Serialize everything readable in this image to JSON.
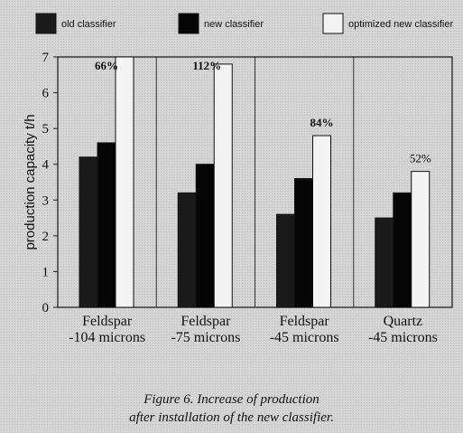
{
  "chart_data": {
    "type": "bar",
    "categories": [
      [
        "Feldspar",
        "-104 microns"
      ],
      [
        "Feldspar",
        "-75 microns"
      ],
      [
        "Feldspar",
        "-45 microns"
      ],
      [
        "Quartz",
        "-45 microns"
      ]
    ],
    "series": [
      {
        "name": "old classifier",
        "values": [
          4.2,
          3.2,
          2.6,
          2.5
        ],
        "color": "#1a1a1a"
      },
      {
        "name": "new classifier",
        "values": [
          4.6,
          4.0,
          3.6,
          3.2
        ],
        "color": "#050505"
      },
      {
        "name": "optimized new classifier",
        "values": [
          7.0,
          6.8,
          4.8,
          3.8
        ],
        "color": "#f4f4f4"
      }
    ],
    "annotations": [
      "66%",
      "112%",
      "84%",
      "52%"
    ],
    "ylabel": "production capacity t/h",
    "ylim": [
      0,
      7
    ],
    "yticks": [
      0,
      1,
      2,
      3,
      4,
      5,
      6,
      7
    ],
    "grid": "vertical separators between groups",
    "legend_position": "top"
  },
  "caption": {
    "line1": "Figure 6. Increase of production",
    "line2": "after installation of the new classifier."
  }
}
